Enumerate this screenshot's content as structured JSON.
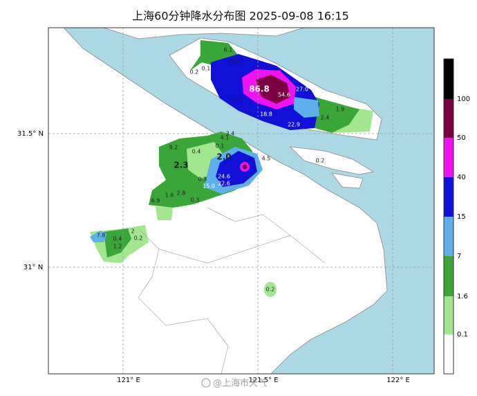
{
  "title": "上海60分钟降水分布图 2025-09-08 16:15",
  "lat_labels": [
    "31.5° N",
    "31° N"
  ],
  "lon_labels": [
    "121° E",
    "121.5° E",
    "122° E"
  ],
  "legend": {
    "ticks": [
      0.1,
      1.6,
      7,
      15,
      40,
      50,
      100
    ],
    "colors": [
      "#ffffff",
      "#a3e690",
      "#3aa63a",
      "#5fb0ea",
      "#1010d8",
      "#f012f0",
      "#7a0042",
      "#000000"
    ]
  },
  "readings": [
    "6.1",
    "0.2",
    "0.1",
    "18.0",
    "86.8",
    "54.6",
    "27.0",
    "14.0",
    "18.8",
    "1.9",
    "2.4",
    "22.9",
    "3.4",
    "4.1",
    "9.2",
    "0.4",
    "0.1",
    "2.3",
    "2.0",
    "4.5",
    "0.2",
    "0.3",
    "24.6",
    "22.6",
    "15.0",
    "2.8",
    "1.6",
    "0.3",
    "6.9",
    "7.8",
    "2",
    "0.4",
    "0.2",
    "1.2",
    "0.2"
  ],
  "watermark": "@上海市天气"
}
